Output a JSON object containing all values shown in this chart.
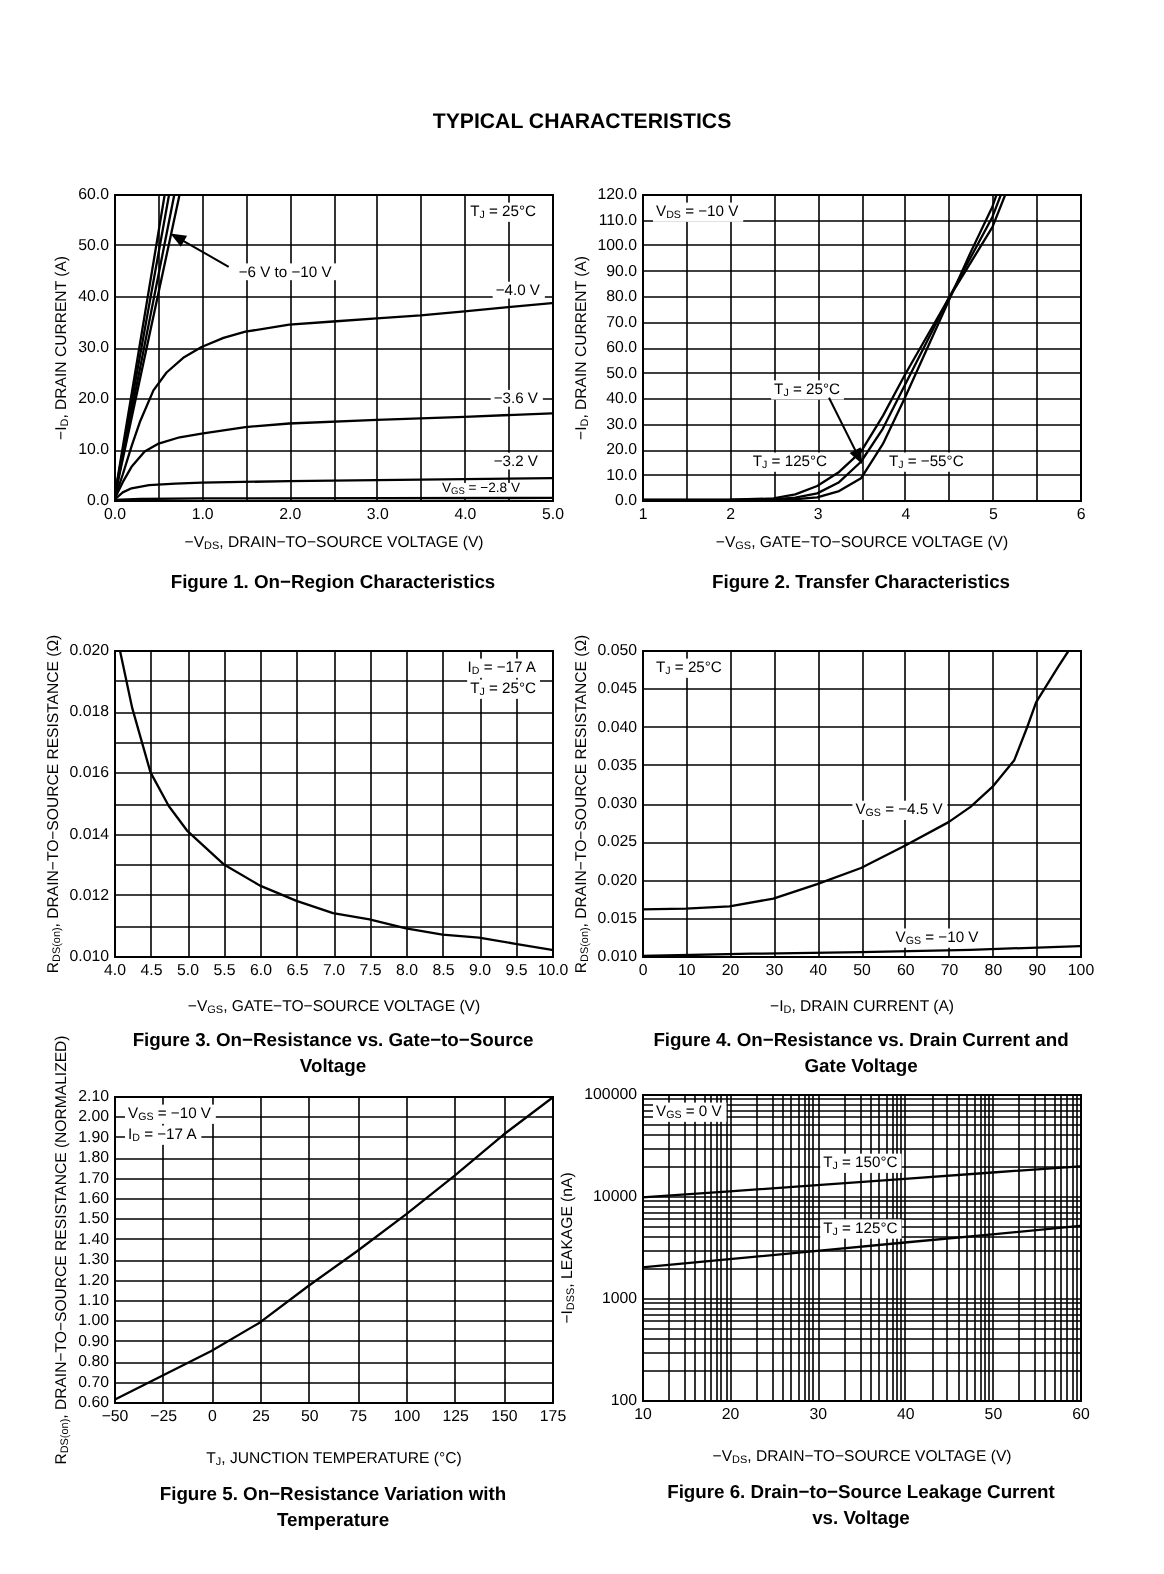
{
  "chart_data": [
    {
      "type": "line",
      "subtitle": "TYPICAL CHARACTERISTICS",
      "title": "Figure 1. On−Region Characteristics",
      "xlabel": "−V$_{DS}$, DRAIN−TO−SOURCE VOLTAGE (V)",
      "ylabel": "−I$_{D}$, DRAIN CURRENT (A)",
      "annotations": [
        "T$_{J}$ = 25°C",
        {
          "text": "−6 V to −10 V",
          "x": 0.67,
          "y": 52
        }
      ],
      "xlim": [
        0,
        5
      ],
      "xticks": [
        {
          "value": 0,
          "label": "0.0"
        },
        {
          "value": 0.5,
          "label": null
        },
        {
          "value": 1,
          "label": "1.0"
        },
        {
          "value": 1.5,
          "label": null
        },
        {
          "value": 2,
          "label": "2.0"
        },
        {
          "value": 2.5,
          "label": null
        },
        {
          "value": 3,
          "label": "3.0"
        },
        {
          "value": 3.5,
          "label": null
        },
        {
          "value": 4,
          "label": "4.0"
        },
        {
          "value": 4.5,
          "label": null
        },
        {
          "value": 5,
          "label": "5.0"
        }
      ],
      "ylim": [
        0,
        60
      ],
      "yticks": [
        {
          "value": 0,
          "label": "0.0"
        },
        {
          "value": 10,
          "label": "10.0"
        },
        {
          "value": 20,
          "label": "20.0"
        },
        {
          "value": 30,
          "label": "30.0"
        },
        {
          "value": 40,
          "label": "40.0"
        },
        {
          "value": 50,
          "label": "50.0"
        },
        {
          "value": 60,
          "label": "60.0"
        }
      ],
      "grid": true,
      "series": [
        {
          "color": "#000000",
          "x": [
            0,
            0.58
          ],
          "values": [
            0,
            60
          ]
        },
        {
          "color": "#000000",
          "x": [
            0,
            0.63
          ],
          "values": [
            0,
            60
          ]
        },
        {
          "color": "#000000",
          "x": [
            0,
            0.69
          ],
          "values": [
            0,
            60
          ]
        },
        {
          "color": "#000000",
          "x": [
            0,
            0.75
          ],
          "values": [
            0,
            60
          ]
        },
        {
          "name": "−4.0 V",
          "color": "#000000",
          "x": [
            0,
            0.1,
            0.2,
            0.3,
            0.45,
            0.6,
            0.8,
            1.0,
            1.25,
            1.5,
            2.0,
            2.5,
            3.0,
            3.5,
            4.0,
            4.5,
            5.0
          ],
          "values": [
            0,
            5,
            10.5,
            15.5,
            21.5,
            25,
            28,
            30,
            31.8,
            33,
            34.4,
            35,
            35.6,
            36.2,
            37,
            37.8,
            38.6
          ]
        },
        {
          "name": "−3.6 V",
          "color": "#000000",
          "x": [
            0,
            0.1,
            0.2,
            0.35,
            0.5,
            0.75,
            1.0,
            1.5,
            2.0,
            3.0,
            4.0,
            5.0
          ],
          "values": [
            0,
            3.5,
            6.5,
            9.5,
            11,
            12.3,
            13,
            14.3,
            15,
            15.7,
            16.3,
            17
          ]
        },
        {
          "name": "−3.2 V",
          "color": "#000000",
          "x": [
            0,
            0.1,
            0.2,
            0.4,
            0.7,
            1.0,
            2.0,
            3.0,
            4.0,
            5.0
          ],
          "values": [
            0,
            1.5,
            2.3,
            2.9,
            3.2,
            3.4,
            3.7,
            3.9,
            4.1,
            4.3
          ]
        },
        {
          "name": "V$_{GS}$ = −2.8 V",
          "color": "#000000",
          "x": [
            0,
            0.3,
            1.0,
            5.0
          ],
          "values": [
            0,
            0.2,
            0.3,
            0.4
          ]
        }
      ]
    },
    {
      "type": "line",
      "title": "Figure 2. Transfer Characteristics",
      "xlabel": "−V$_{GS}$, GATE−TO−SOURCE VOLTAGE (V)",
      "ylabel": "−I$_{D}$, DRAIN CURRENT (A)",
      "annotations": [
        "V$_{DS}$ = −10 V",
        {
          "text": "T$_{J}$ = 25°C",
          "x": 3.5,
          "y": 15
        }
      ],
      "xlim": [
        1,
        6
      ],
      "xticks": [
        1,
        {
          "value": 1.5,
          "label": null
        },
        2,
        {
          "value": 2.5,
          "label": null
        },
        3,
        {
          "value": 3.5,
          "label": null
        },
        4,
        {
          "value": 4.5,
          "label": null
        },
        5,
        {
          "value": 5.5,
          "label": null
        },
        6
      ],
      "ylim": [
        0,
        120
      ],
      "yticks": [
        {
          "value": 0,
          "label": "0.0"
        },
        {
          "value": 10,
          "label": "10.0"
        },
        {
          "value": 20,
          "label": "20.0"
        },
        {
          "value": 30,
          "label": "30.0"
        },
        {
          "value": 40,
          "label": "40.0"
        },
        {
          "value": 50,
          "label": "50.0"
        },
        {
          "value": 60,
          "label": "60.0"
        },
        {
          "value": 70,
          "label": "70.0"
        },
        {
          "value": 80,
          "label": "80.0"
        },
        {
          "value": 90,
          "label": "90.0"
        },
        {
          "value": 100,
          "label": "100.0"
        },
        {
          "value": 110,
          "label": "110.0"
        },
        {
          "value": 120,
          "label": "120.0"
        }
      ],
      "grid": true,
      "series": [
        {
          "color": "#000000",
          "x": [
            1,
            2,
            2.5,
            2.75,
            3,
            3.25,
            3.5,
            3.75,
            4,
            4.25,
            4.5,
            4.75,
            5,
            5.1
          ],
          "values": [
            0,
            0,
            0.2,
            0.9,
            2.6,
            7,
            15,
            28,
            45,
            62,
            79,
            95,
            111,
            120
          ]
        },
        {
          "name": "T$_{J}$ = 125°C",
          "color": "#000000",
          "x": [
            1,
            2,
            2.5,
            2.75,
            3,
            3.25,
            3.5,
            3.75,
            4,
            4.25,
            4.5,
            4.75,
            5,
            5.15
          ],
          "values": [
            0,
            0.1,
            0.6,
            2.2,
            5.5,
            11,
            19,
            33,
            49,
            64,
            79,
            93,
            107,
            120
          ]
        },
        {
          "name": "T$_{J}$ = −55°C",
          "color": "#000000",
          "x": [
            1,
            2,
            2.5,
            2.75,
            3,
            3.25,
            3.5,
            3.75,
            4,
            4.25,
            4.5,
            4.75,
            5,
            5.05
          ],
          "values": [
            0,
            0,
            0,
            0.3,
            1,
            3.5,
            8.5,
            22,
            40,
            59,
            78,
            97,
            115,
            120
          ]
        }
      ]
    },
    {
      "type": "line",
      "title": "Figure 3. On−Resistance vs. Gate−to−Source Voltage",
      "xlabel": "−V$_{GS}$, GATE−TO−SOURCE VOLTAGE (V)",
      "ylabel": "R$_{DS(on)}$, DRAIN−TO−SOURCE RESISTANCE (Ω)",
      "annotations": [
        "I$_{D}$ = −17 A",
        "T$_{J}$ = 25°C"
      ],
      "xlim": [
        4,
        10
      ],
      "xticks": [
        {
          "value": 4,
          "label": "4.0"
        },
        4.5,
        {
          "value": 5,
          "label": "5.0"
        },
        5.5,
        {
          "value": 6,
          "label": "6.0"
        },
        6.5,
        {
          "value": 7,
          "label": "7.0"
        },
        7.5,
        {
          "value": 8,
          "label": "8.0"
        },
        8.5,
        {
          "value": 9,
          "label": "9.0"
        },
        9.5,
        {
          "value": 10,
          "label": "10.0"
        }
      ],
      "ylim": [
        0.01,
        0.02
      ],
      "yticks": [
        {
          "value": 0.01,
          "label": "0.010"
        },
        {
          "value": 0.011,
          "label": null
        },
        {
          "value": 0.012,
          "label": "0.012"
        },
        {
          "value": 0.013,
          "label": null
        },
        {
          "value": 0.014,
          "label": "0.014"
        },
        {
          "value": 0.015,
          "label": null
        },
        {
          "value": 0.016,
          "label": "0.016"
        },
        {
          "value": 0.017,
          "label": null
        },
        {
          "value": 0.018,
          "label": "0.018"
        },
        {
          "value": 0.019,
          "label": null
        },
        {
          "value": 0.02,
          "label": "0.020"
        }
      ],
      "grid": true,
      "series": [
        {
          "color": "#000000",
          "x": [
            4.08,
            4.25,
            4.5,
            4.75,
            5,
            5.5,
            6,
            6.5,
            7,
            7.5,
            8,
            8.5,
            9,
            9.5,
            10
          ],
          "values": [
            0.02,
            0.0181,
            0.016,
            0.0149,
            0.0141,
            0.013,
            0.0123,
            0.0118,
            0.0114,
            0.0112,
            0.0109,
            0.0107,
            0.0106,
            0.0104,
            0.0102
          ]
        }
      ]
    },
    {
      "type": "line",
      "title": "Figure 4. On−Resistance vs. Drain Current and Gate Voltage",
      "xlabel": "−I$_{D}$, DRAIN CURRENT (A)",
      "ylabel": "R$_{DS(on)}$, DRAIN−TO−SOURCE RESISTANCE (Ω)",
      "annotations": [
        "T$_{J}$ = 25°C"
      ],
      "xlim": [
        0,
        100
      ],
      "xticks": [
        0,
        10,
        20,
        30,
        40,
        50,
        60,
        70,
        80,
        90,
        100
      ],
      "ylim": [
        0.01,
        0.05
      ],
      "yticks": [
        {
          "value": 0.01,
          "label": "0.010"
        },
        {
          "value": 0.015,
          "label": "0.015"
        },
        {
          "value": 0.02,
          "label": "0.020"
        },
        {
          "value": 0.025,
          "label": "0.025"
        },
        {
          "value": 0.03,
          "label": "0.030"
        },
        {
          "value": 0.035,
          "label": "0.035"
        },
        {
          "value": 0.04,
          "label": "0.040"
        },
        {
          "value": 0.045,
          "label": "0.045"
        },
        {
          "value": 0.05,
          "label": "0.050"
        }
      ],
      "grid": true,
      "series": [
        {
          "name": "V$_{GS}$ = −4.5 V",
          "color": "#000000",
          "x": [
            0,
            10,
            20,
            30,
            40,
            50,
            60,
            70,
            75,
            80,
            85,
            88,
            90,
            95,
            97.5
          ],
          "values": [
            0.0161,
            0.0162,
            0.0165,
            0.0175,
            0.0194,
            0.0215,
            0.0244,
            0.0275,
            0.0295,
            0.0321,
            0.0356,
            0.04,
            0.0432,
            0.0478,
            0.05
          ]
        },
        {
          "name": "V$_{GS}$ = −10 V",
          "color": "#000000",
          "x": [
            0,
            25,
            50,
            75,
            100
          ],
          "values": [
            0.01,
            0.0103,
            0.0105,
            0.0108,
            0.0113
          ]
        }
      ]
    },
    {
      "type": "line",
      "title": "Figure 5. On−Resistance Variation with Temperature",
      "xlabel": "T$_{J}$, JUNCTION TEMPERATURE (°C)",
      "ylabel": "R$_{DS(on)}$, DRAIN−TO−SOURCE RESISTANCE (NORMALIZED)",
      "annotations": [
        "V$_{GS}$ = −10 V",
        "I$_{D}$ = −17 A"
      ],
      "xlim": [
        -50,
        175
      ],
      "xticks": [
        {
          "value": -50,
          "label": "−50"
        },
        {
          "value": -25,
          "label": "−25"
        },
        0,
        25,
        50,
        75,
        100,
        125,
        150,
        175
      ],
      "ylim": [
        0.6,
        2.1
      ],
      "yticks": [
        {
          "value": 0.6,
          "label": "0.60"
        },
        {
          "value": 0.7,
          "label": "0.70"
        },
        {
          "value": 0.8,
          "label": "0.80"
        },
        {
          "value": 0.9,
          "label": "0.90"
        },
        {
          "value": 1,
          "label": "1.00"
        },
        {
          "value": 1.1,
          "label": "1.10"
        },
        {
          "value": 1.2,
          "label": "1.20"
        },
        {
          "value": 1.3,
          "label": "1.30"
        },
        {
          "value": 1.4,
          "label": "1.40"
        },
        {
          "value": 1.5,
          "label": "1.50"
        },
        {
          "value": 1.6,
          "label": "1.60"
        },
        {
          "value": 1.7,
          "label": "1.70"
        },
        {
          "value": 1.8,
          "label": "1.80"
        },
        {
          "value": 1.9,
          "label": "1.90"
        },
        {
          "value": 2,
          "label": "2.00"
        },
        {
          "value": 2.1,
          "label": "2.10"
        }
      ],
      "grid": true,
      "series": [
        {
          "color": "#000000",
          "x": [
            -50,
            -25,
            0,
            25,
            50,
            75,
            100,
            125,
            150,
            175
          ],
          "values": [
            0.61,
            0.73,
            0.85,
            0.99,
            1.17,
            1.34,
            1.52,
            1.71,
            1.91,
            2.09
          ]
        }
      ]
    },
    {
      "type": "line",
      "title": "Figure 6. Drain−to−Source Leakage Current vs. Voltage",
      "xlabel": "−V$_{DS}$, DRAIN−TO−SOURCE VOLTAGE (V)",
      "ylabel": "−I$_{DSS}$, LEAKAGE (nA)",
      "annotations": [
        "V$_{GS}$ = 0 V"
      ],
      "log": "y",
      "xlim": [
        10,
        60
      ],
      "xticks": [
        10,
        {
          "value": 13,
          "label": null
        },
        {
          "value": 14.8,
          "label": null
        },
        {
          "value": 16,
          "label": null
        },
        {
          "value": 17,
          "label": null
        },
        {
          "value": 17.8,
          "label": null
        },
        {
          "value": 18.5,
          "label": null
        },
        {
          "value": 19,
          "label": null
        },
        {
          "value": 19.5,
          "label": null
        },
        20,
        {
          "value": 23,
          "label": null
        },
        {
          "value": 24.8,
          "label": null
        },
        {
          "value": 26,
          "label": null
        },
        {
          "value": 27,
          "label": null
        },
        {
          "value": 27.8,
          "label": null
        },
        {
          "value": 28.5,
          "label": null
        },
        {
          "value": 29,
          "label": null
        },
        {
          "value": 29.5,
          "label": null
        },
        30,
        {
          "value": 33,
          "label": null
        },
        {
          "value": 34.8,
          "label": null
        },
        {
          "value": 36,
          "label": null
        },
        {
          "value": 37,
          "label": null
        },
        {
          "value": 37.8,
          "label": null
        },
        {
          "value": 38.5,
          "label": null
        },
        {
          "value": 39,
          "label": null
        },
        {
          "value": 39.5,
          "label": null
        },
        40,
        {
          "value": 43,
          "label": null
        },
        {
          "value": 44.8,
          "label": null
        },
        {
          "value": 46,
          "label": null
        },
        {
          "value": 47,
          "label": null
        },
        {
          "value": 47.8,
          "label": null
        },
        {
          "value": 48.5,
          "label": null
        },
        {
          "value": 49,
          "label": null
        },
        {
          "value": 49.5,
          "label": null
        },
        50,
        {
          "value": 53,
          "label": null
        },
        {
          "value": 54.8,
          "label": null
        },
        {
          "value": 56,
          "label": null
        },
        {
          "value": 57,
          "label": null
        },
        {
          "value": 57.8,
          "label": null
        },
        {
          "value": 58.5,
          "label": null
        },
        {
          "value": 59,
          "label": null
        },
        {
          "value": 59.5,
          "label": null
        },
        60
      ],
      "ylim": [
        100,
        100000
      ],
      "yticks": [
        100,
        {
          "value": 200,
          "label": null
        },
        {
          "value": 300,
          "label": null
        },
        {
          "value": 400,
          "label": null
        },
        {
          "value": 500,
          "label": null
        },
        {
          "value": 600,
          "label": null
        },
        {
          "value": 700,
          "label": null
        },
        {
          "value": 800,
          "label": null
        },
        {
          "value": 900,
          "label": null
        },
        1000,
        {
          "value": 2000,
          "label": null
        },
        {
          "value": 3000,
          "label": null
        },
        {
          "value": 4000,
          "label": null
        },
        {
          "value": 5000,
          "label": null
        },
        {
          "value": 6000,
          "label": null
        },
        {
          "value": 7000,
          "label": null
        },
        {
          "value": 8000,
          "label": null
        },
        {
          "value": 9000,
          "label": null
        },
        10000,
        {
          "value": 20000,
          "label": null
        },
        {
          "value": 30000,
          "label": null
        },
        {
          "value": 40000,
          "label": null
        },
        {
          "value": 50000,
          "label": null
        },
        {
          "value": 60000,
          "label": null
        },
        {
          "value": 70000,
          "label": null
        },
        {
          "value": 80000,
          "label": null
        },
        {
          "value": 90000,
          "label": null
        },
        100000
      ],
      "grid": true,
      "series": [
        {
          "name": "T$_{J}$ = 150°C",
          "color": "#000000",
          "x": [
            10,
            20,
            30,
            40,
            50,
            60
          ],
          "values": [
            9700,
            11100,
            12800,
            14700,
            17000,
            19500
          ]
        },
        {
          "name": "T$_{J}$ = 125°C",
          "color": "#000000",
          "x": [
            10,
            20,
            30,
            40,
            50,
            60
          ],
          "values": [
            2000,
            2400,
            2900,
            3500,
            4200,
            5100
          ]
        }
      ]
    }
  ]
}
